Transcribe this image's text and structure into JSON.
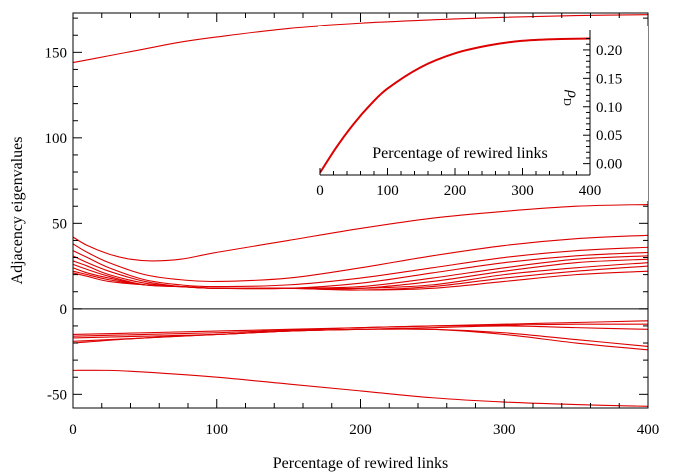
{
  "chart_data": [
    {
      "type": "line",
      "xlabel": "Percentage of rewired links",
      "ylabel": "Adjacency eigenvalues",
      "xlim": [
        0,
        400
      ],
      "ylim": [
        -58,
        173
      ],
      "x_ticks": [
        0,
        100,
        200,
        300,
        400
      ],
      "y_ticks": [
        -50,
        0,
        50,
        100,
        150
      ],
      "x_tick_labels": [
        "0",
        "100",
        "200",
        "300",
        "400"
      ],
      "y_tick_labels": [
        "-50",
        "0",
        "50",
        "100",
        "150"
      ],
      "zero_line": true,
      "series_color": "#dd0000",
      "series": [
        {
          "x": [
            0,
            25,
            50,
            75,
            100,
            150,
            200,
            250,
            300,
            350,
            400
          ],
          "values": [
            144,
            148,
            152,
            156,
            159,
            164,
            167,
            169,
            170.5,
            171.5,
            172
          ]
        },
        {
          "x": [
            0,
            10,
            25,
            40,
            55,
            75,
            100,
            150,
            200,
            250,
            300,
            350,
            400
          ],
          "values": [
            42,
            37,
            32,
            29,
            28,
            29,
            33,
            40,
            47,
            53,
            57,
            60,
            61
          ]
        },
        {
          "x": [
            0,
            10,
            25,
            50,
            75,
            100,
            150,
            200,
            250,
            300,
            350,
            400
          ],
          "values": [
            38,
            33,
            27,
            20,
            17,
            16,
            18,
            24,
            31,
            37,
            41,
            43
          ]
        },
        {
          "x": [
            0,
            10,
            25,
            50,
            75,
            100,
            150,
            200,
            250,
            300,
            350,
            400
          ],
          "values": [
            34,
            30,
            24,
            17,
            14,
            13,
            14,
            18,
            24,
            30,
            34,
            36
          ]
        },
        {
          "x": [
            0,
            10,
            25,
            50,
            75,
            100,
            150,
            200,
            250,
            300,
            350,
            400
          ],
          "values": [
            31,
            27,
            22,
            16,
            13,
            12,
            12,
            15,
            21,
            27,
            31,
            33
          ]
        },
        {
          "x": [
            0,
            10,
            25,
            50,
            75,
            100,
            150,
            200,
            250,
            300,
            350,
            400
          ],
          "values": [
            28,
            25,
            20,
            15,
            13,
            12,
            12,
            13,
            18,
            24,
            29,
            31
          ]
        },
        {
          "x": [
            0,
            10,
            25,
            50,
            75,
            100,
            150,
            200,
            250,
            300,
            350,
            400
          ],
          "values": [
            26,
            23,
            19,
            14,
            13,
            12,
            12,
            12,
            16,
            22,
            27,
            29
          ]
        },
        {
          "x": [
            0,
            10,
            25,
            50,
            75,
            100,
            150,
            200,
            250,
            300,
            350,
            400
          ],
          "values": [
            24,
            21,
            18,
            14,
            13,
            12,
            12,
            12,
            14,
            20,
            24,
            27
          ]
        },
        {
          "x": [
            0,
            10,
            25,
            50,
            75,
            100,
            150,
            200,
            250,
            300,
            350,
            400
          ],
          "values": [
            22,
            20,
            17,
            14,
            13,
            12,
            12,
            11,
            13,
            18,
            22,
            25
          ]
        },
        {
          "x": [
            0,
            10,
            25,
            50,
            75,
            100,
            150,
            200,
            250,
            300,
            350,
            400
          ],
          "values": [
            21,
            19,
            16,
            14,
            13,
            12,
            12,
            11,
            12,
            16,
            20,
            22
          ]
        },
        {
          "x": [
            0,
            50,
            100,
            150,
            200,
            250,
            300,
            350,
            400
          ],
          "values": [
            -16,
            -15,
            -14,
            -12.5,
            -11,
            -10,
            -9,
            -8,
            -7
          ]
        },
        {
          "x": [
            0,
            50,
            100,
            150,
            200,
            250,
            300,
            350,
            400
          ],
          "values": [
            -15,
            -14,
            -13,
            -12,
            -11,
            -10,
            -9.5,
            -9,
            -9
          ]
        },
        {
          "x": [
            0,
            50,
            100,
            150,
            200,
            250,
            300,
            350,
            400
          ],
          "values": [
            -17,
            -16,
            -15,
            -13,
            -12,
            -11,
            -10,
            -11,
            -12
          ]
        },
        {
          "x": [
            0,
            50,
            100,
            150,
            200,
            250,
            300,
            350,
            400
          ],
          "values": [
            -19,
            -17,
            -15,
            -13,
            -12,
            -12,
            -14,
            -18,
            -22
          ]
        },
        {
          "x": [
            0,
            50,
            100,
            150,
            200,
            250,
            300,
            350,
            400
          ],
          "values": [
            -20,
            -17,
            -15,
            -13,
            -12,
            -12,
            -15,
            -20,
            -24
          ]
        },
        {
          "x": [
            0,
            25,
            50,
            100,
            150,
            200,
            250,
            300,
            350,
            400
          ],
          "values": [
            -36,
            -36,
            -37,
            -40,
            -44,
            -48,
            -52,
            -54.5,
            -56,
            -57
          ]
        }
      ]
    },
    {
      "type": "line",
      "xlabel": "Percentage of rewired links",
      "ylabel": "ρ",
      "ylabel_sub": "D",
      "xlim": [
        0,
        400
      ],
      "ylim": [
        -0.02,
        0.235
      ],
      "x_ticks": [
        0,
        100,
        200,
        300,
        400
      ],
      "y_ticks": [
        0.0,
        0.05,
        0.1,
        0.15,
        0.2
      ],
      "x_tick_labels": [
        "0",
        "100",
        "200",
        "300",
        "400"
      ],
      "y_tick_labels": [
        "0.00",
        "0.05",
        "0.10",
        "0.15",
        "0.20"
      ],
      "series_color": "#dd0000",
      "series": [
        {
          "x": [
            0,
            25,
            50,
            75,
            100,
            150,
            200,
            250,
            300,
            350,
            400
          ],
          "values": [
            -0.016,
            0.03,
            0.07,
            0.104,
            0.132,
            0.17,
            0.194,
            0.208,
            0.216,
            0.219,
            0.22
          ]
        }
      ]
    }
  ]
}
